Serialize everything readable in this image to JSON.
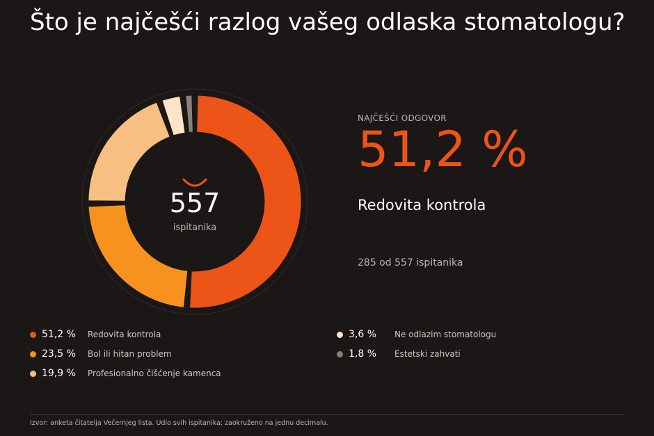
{
  "title": "Što je najčešći razlog vašeg odlaska stomatologu?",
  "chart_data": {
    "type": "pie",
    "categories": [
      "Redovita kontrola",
      "Bol ili hitan problem",
      "Profesionalno čišćenje kamenca",
      "Ne odlazim stomatologu",
      "Estetski zahvati"
    ],
    "values": [
      51.2,
      23.5,
      19.9,
      3.6,
      1.8
    ],
    "value_labels": [
      "51,2 %",
      "23,5 %",
      "19,9 %",
      "3,6 %",
      "1,8 %"
    ],
    "colors": [
      "#ec5418",
      "#f8921f",
      "#f7c082",
      "#fde4c8",
      "#8a8079"
    ],
    "donut": true,
    "center_value": "557",
    "center_label": "ispitanika",
    "legend_placement": "bottom"
  },
  "highlight": {
    "label": "NAJČEŠĆI ODGOVOR",
    "value": "51,2 %",
    "name": "Redovita kontrola",
    "count_text": "285 od 557 ispitanika"
  },
  "legend": {
    "left": [
      {
        "pct": "51,2 %",
        "label": "Redovita kontrola",
        "color": "#ec5418"
      },
      {
        "pct": "23,5 %",
        "label": "Bol ili hitan problem",
        "color": "#f8921f"
      },
      {
        "pct": "19,9 %",
        "label": "Profesionalno čišćenje kamenca",
        "color": "#f7c082"
      }
    ],
    "right": [
      {
        "pct": "3,6 %",
        "label": "Ne odlazim stomatologu",
        "color": "#fde4c8"
      },
      {
        "pct": "1,8 %",
        "label": "Estetski zahvati",
        "color": "#8a8079"
      }
    ]
  },
  "source": "Izvor: anketa čitatelja Večernjeg lista. Udio svih ispitanika; zaokruženo na jednu decimalu.",
  "colors": {
    "background": "#1b1716",
    "accent": "#ec5418",
    "muted_text": "#bdb5b1"
  },
  "icons": {
    "center": "smile-icon"
  }
}
